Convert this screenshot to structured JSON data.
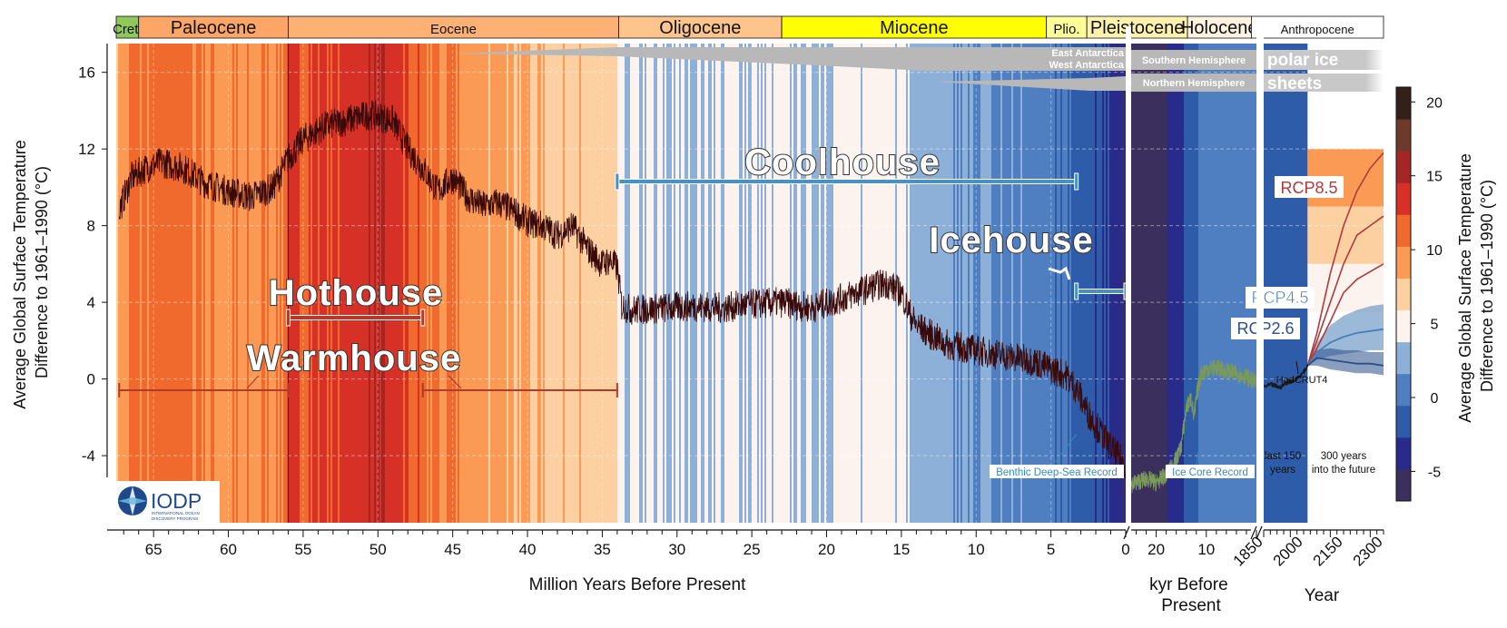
{
  "chart_data": {
    "type": "line",
    "panels": [
      {
        "id": "deep_time",
        "xlabel": "Million Years Before Present",
        "xlim": [
          67.5,
          0
        ],
        "reversed": true,
        "ticks": [
          "65",
          "60",
          "55",
          "50",
          "45",
          "40",
          "35",
          "30",
          "25",
          "20",
          "15",
          "10",
          "5",
          "0"
        ]
      },
      {
        "id": "kyr",
        "xlabel_lines": [
          "kyr Before",
          "Present"
        ],
        "xlim": [
          25,
          0
        ],
        "reversed": true,
        "ticks": [
          "20",
          "10"
        ]
      },
      {
        "id": "recent",
        "xlabel": "Year",
        "xlim": [
          1850,
          2300
        ],
        "ticks": [
          "1850",
          "2000",
          "2150",
          "2300"
        ]
      }
    ],
    "ylabel_lines": [
      "Average Global Surface Temperature",
      "Difference to 1961–1990 (°C)"
    ],
    "ylim": [
      -7.5,
      17.5
    ],
    "y_ticks": [
      "16",
      "12",
      "8",
      "4",
      "0",
      "-4"
    ],
    "right_ylabel_lines": [
      "Average Global Surface Temperature",
      "Difference to 1961–1990 (°C)"
    ],
    "colorbar": {
      "ticks": [
        "20",
        "15",
        "10",
        "5",
        "0",
        "-5"
      ],
      "range": [
        -7,
        21
      ],
      "colors": [
        "#3b2f5d",
        "#292b8a",
        "#2e5ca8",
        "#4f7fc0",
        "#8db0d8",
        "#fcf3ee",
        "#fdd0a2",
        "#fb9a55",
        "#ef6a2c",
        "#d73027",
        "#a52424",
        "#6e3a2c",
        "#332019"
      ]
    },
    "epochs": [
      {
        "name": "Cret.",
        "from": 67.5,
        "to": 66.0,
        "color": "#8fc75a"
      },
      {
        "name": "Paleocene",
        "from": 66.0,
        "to": 56.0,
        "color": "#fda668"
      },
      {
        "name": "Eocene",
        "from": 56.0,
        "to": 33.9,
        "color": "#fdb174"
      },
      {
        "name": "Oligocene",
        "from": 33.9,
        "to": 23.0,
        "color": "#fec48c"
      },
      {
        "name": "Miocene",
        "from": 23.0,
        "to": 5.3,
        "color": "#ffff00"
      },
      {
        "name": "Plio.",
        "from": 5.3,
        "to": 2.6,
        "color": "#ffff99"
      },
      {
        "name": "Pleistocene",
        "from": 2.6,
        "to": 0,
        "color": "#fff2ae"
      },
      {
        "name": "Holocene",
        "color": "#fef2e0"
      },
      {
        "name": "Anthropocene",
        "color": "#ffffff"
      }
    ],
    "climate_states": [
      {
        "name": "Hothouse",
        "from": 56.0,
        "to": 47.0,
        "color": "#b03a2e"
      },
      {
        "name": "Warmhouse",
        "ranges": [
          [
            67.3,
            56.0
          ],
          [
            47.0,
            34.0
          ]
        ],
        "color": "#b03a2e"
      },
      {
        "name": "Coolhouse",
        "from": 34.0,
        "to": 3.3,
        "color": "#4a90c0"
      },
      {
        "name": "Icehouse",
        "from": 3.3,
        "to": 0,
        "color": "#4a90c0"
      }
    ],
    "ice_labels": [
      "East Antarctica",
      "West Antarctica",
      "Southern Hemisphere",
      "Northern Hemisphere",
      "polar ice",
      "sheets"
    ],
    "annotations": [
      "Benthic Deep-Sea Record",
      "Ice Core Record",
      "HadCRUT4",
      "last 150 years",
      "300 years into the future"
    ],
    "series": [
      {
        "name": "Benthic Deep-Sea Record",
        "panel": "deep_time",
        "color": "#3a0a0a",
        "x": [
          67.3,
          66.5,
          65.5,
          64.5,
          63.0,
          61.5,
          60.0,
          58.5,
          57.0,
          56.0,
          55.0,
          53.5,
          52.0,
          50.5,
          49.0,
          48.0,
          47.0,
          46.0,
          45.0,
          44.0,
          43.0,
          42.0,
          41.0,
          40.0,
          39.0,
          38.0,
          37.0,
          36.0,
          35.0,
          34.5,
          34.0,
          33.7,
          33.0,
          31.0,
          29.0,
          27.0,
          25.0,
          23.0,
          21.0,
          19.0,
          17.0,
          16.0,
          15.0,
          14.5,
          14.0,
          13.0,
          12.0,
          10.0,
          8.0,
          6.0,
          5.0,
          4.0,
          3.3,
          2.5,
          1.5,
          0.8,
          0.0
        ],
        "y": [
          8.8,
          10.5,
          11.0,
          11.3,
          11.0,
          10.2,
          9.8,
          9.5,
          10.0,
          11.5,
          12.5,
          13.2,
          13.5,
          13.8,
          13.5,
          12.0,
          11.0,
          9.8,
          10.5,
          9.5,
          9.0,
          9.2,
          8.8,
          8.2,
          8.0,
          7.5,
          8.0,
          6.8,
          6.0,
          6.2,
          5.8,
          3.8,
          3.6,
          3.7,
          3.8,
          3.7,
          3.9,
          4.0,
          3.7,
          4.2,
          4.8,
          5.0,
          4.5,
          3.5,
          2.8,
          2.3,
          1.8,
          1.5,
          1.2,
          0.9,
          0.5,
          0.2,
          -0.5,
          -1.8,
          -3.0,
          -3.8,
          -4.5
        ]
      },
      {
        "name": "Ice Core Record",
        "panel": "kyr",
        "color": "#7a9a5a",
        "x": [
          25,
          22,
          20,
          18,
          16,
          15,
          14,
          13,
          12.5,
          11.7,
          11,
          10,
          8,
          6,
          4,
          2,
          0
        ],
        "y": [
          -5.5,
          -5.2,
          -5.4,
          -5.0,
          -4.2,
          -3.5,
          -1.5,
          -1.0,
          -2.0,
          -0.5,
          0.3,
          0.5,
          0.6,
          0.4,
          0.3,
          0.1,
          -0.2
        ]
      },
      {
        "name": "HadCRUT4",
        "panel": "recent",
        "color": "#1a1a1a",
        "x": [
          1850,
          1880,
          1910,
          1940,
          1970,
          2000,
          2015
        ],
        "y": [
          -0.4,
          -0.3,
          -0.45,
          -0.15,
          -0.05,
          0.35,
          0.7
        ]
      },
      {
        "name": "RCP8.5",
        "panel": "recent",
        "color": "#b03a3a",
        "x": [
          2015,
          2050,
          2100,
          2150,
          2200,
          2250,
          2300
        ],
        "y": [
          0.7,
          2.0,
          4.0,
          6.0,
          7.5,
          8.0,
          8.5
        ],
        "range_low": [
          0.7,
          1.6,
          3.0,
          4.5,
          5.2,
          5.6,
          6.0
        ],
        "range_high": [
          0.7,
          2.4,
          5.5,
          8.0,
          9.8,
          11.0,
          11.8
        ]
      },
      {
        "name": "RCP4.5",
        "panel": "recent",
        "color": "#4a7fb8",
        "x": [
          2015,
          2050,
          2100,
          2150,
          2200,
          2250,
          2300
        ],
        "y": [
          0.7,
          1.4,
          1.9,
          2.2,
          2.4,
          2.5,
          2.6
        ],
        "range_low": [
          0.7,
          1.0,
          1.2,
          1.3,
          1.4,
          1.5,
          1.5
        ],
        "range_high": [
          0.7,
          1.9,
          2.8,
          3.3,
          3.6,
          3.8,
          3.9
        ]
      },
      {
        "name": "RCP2.6",
        "panel": "recent",
        "color": "#2a4f8a",
        "x": [
          2015,
          2050,
          2100,
          2150,
          2200,
          2250,
          2300
        ],
        "y": [
          0.7,
          1.1,
          1.0,
          0.9,
          0.8,
          0.8,
          0.7
        ],
        "range_low": [
          0.7,
          0.7,
          0.5,
          0.4,
          0.3,
          0.3,
          0.2
        ],
        "range_high": [
          0.7,
          1.5,
          1.6,
          1.5,
          1.5,
          1.4,
          1.4
        ]
      }
    ],
    "grid": true
  },
  "logo": {
    "name": "IODP",
    "subtitle_1": "INTERNATIONAL OCEAN",
    "subtitle_2": "DISCOVERY PROGRAM"
  }
}
